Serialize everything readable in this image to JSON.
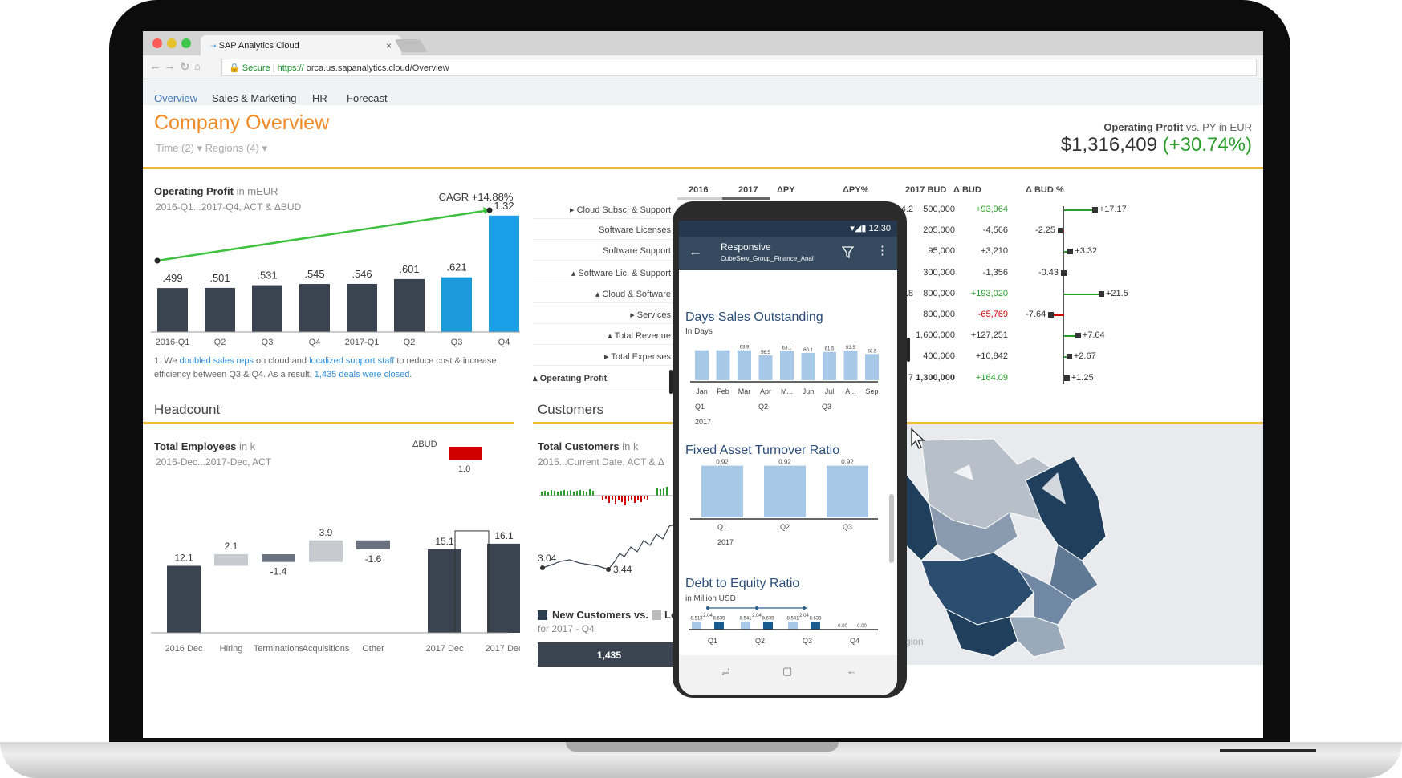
{
  "browser": {
    "tab_title": "SAP Analytics Cloud",
    "tab_close": "×",
    "url_secure": "Secure",
    "url_sep": "|",
    "url_scheme": "https://",
    "url_rest": " orca.us.sapanalytics.cloud/Overview"
  },
  "nav": {
    "tabs": [
      "Overview",
      "Sales & Marketing",
      "HR",
      "Forecast"
    ],
    "active": "Overview"
  },
  "page": {
    "title": "Company Overview",
    "filters": "Time (2) ▾   Regions (4) ▾"
  },
  "kpi": {
    "label_main": "Operating Profit",
    "label_rest": " vs. PY in EUR",
    "value": "$1,316,409",
    "delta": "(+30.74%)"
  },
  "op_profit": {
    "title": "Operating Profit",
    "unit": " in mEUR",
    "subtitle": "2016-Q1...2017-Q4, ACT & ΔBUD",
    "cagr": "CAGR +14.88%",
    "note_parts": [
      "1. We ",
      "doubled sales reps",
      " on cloud and ",
      "localized support staff",
      " to reduce cost & increase efficiency between Q3 & Q4. As a result, ",
      "1,435 deals were closed",
      "."
    ]
  },
  "headcount": {
    "section": "Headcount",
    "title": "Total Employees",
    "unit": " in k",
    "subtitle": "2016-Dec...2017-Dec, ACT",
    "dbud_label": "ΔBUD",
    "dbud_value": "1.0"
  },
  "customers": {
    "section": "Customers",
    "title": "Total Customers",
    "unit": " in k",
    "subtitle": "2015...Current Date, ACT & Δ",
    "legend": "New Customers vs. ",
    "legend_cut": "Lo",
    "legend_sub": "for 2017 - Q4",
    "bar_label": "1,435",
    "low_label": "3.04",
    "low2_label": "3.44"
  },
  "region_text": "gion",
  "table": {
    "headers": [
      "2016",
      "2017",
      "ΔPY",
      "ΔPY%",
      "2017 BUD",
      "Δ BUD",
      "Δ BUD %"
    ],
    "rows": [
      {
        "label": "▸ Cloud Subsc. & Support",
        "py_pct": "4.2",
        "bud": "500,000",
        "d_bud": "+93,964",
        "d_bud_cls": "pos",
        "bud_pct": "+17.17"
      },
      {
        "label": "Software Licenses",
        "py_pct": "",
        "bud": "205,000",
        "d_bud": "-4,566",
        "d_bud_cls": "",
        "bud_pct": "-2.25"
      },
      {
        "label": "Software Support",
        "py_pct": "",
        "bud": "95,000",
        "d_bud": "+3,210",
        "d_bud_cls": "",
        "bud_pct": "+3.32"
      },
      {
        "label": "▴ Software Lic. & Support",
        "py_pct": "",
        "bud": "300,000",
        "d_bud": "-1,356",
        "d_bud_cls": "",
        "bud_pct": "-0.43"
      },
      {
        "label": "▴ Cloud & Software",
        "py_pct": "+39.8",
        "bud": "800,000",
        "d_bud": "+193,020",
        "d_bud_cls": "pos",
        "bud_pct": "+21.5"
      },
      {
        "label": "▸ Services",
        "py_pct": "",
        "bud": "800,000",
        "d_bud": "-65,769",
        "d_bud_cls": "neg",
        "bud_pct": "-7.64"
      },
      {
        "label": "▴ Total Revenue",
        "py_pct": "",
        "bud": "1,600,000",
        "d_bud": "+127,251",
        "d_bud_cls": "",
        "bud_pct": "+7.64"
      },
      {
        "label": "▸ Total Expenses",
        "py_pct": "",
        "bud": "400,000",
        "d_bud": "+10,842",
        "d_bud_cls": "",
        "bud_pct": "+2.67"
      },
      {
        "label": "▴ Operating Profit",
        "py_pct": "7",
        "bud": "1,300,000",
        "d_bud": "+164.09",
        "d_bud_cls": "pos",
        "bud_pct": "+1.25"
      }
    ]
  },
  "phone": {
    "time": "12:30",
    "title": "Responsive",
    "subtitle": "CubeServ_Group_Finance_Anal",
    "dso_title": "Days Sales Outstanding",
    "dso_unit": "In Days",
    "fat_title": "Fixed Asset Turnover Ratio",
    "de_title": "Debt to Equity Ratio",
    "de_unit": "in Million USD",
    "year": "2017",
    "nav_recent": "≓",
    "nav_home": "▢",
    "nav_back": "←"
  },
  "chart_data": [
    {
      "type": "bar",
      "title": "Operating Profit",
      "categories": [
        "2016-Q1",
        "Q2",
        "Q3",
        "Q4",
        "2017-Q1",
        "Q2",
        "Q3",
        "Q4"
      ],
      "values": [
        0.499,
        0.501,
        0.531,
        0.545,
        0.546,
        0.601,
        0.621,
        1.32
      ],
      "labels": [
        ".499",
        ".501",
        ".531",
        ".545",
        ".546",
        ".601",
        ".621",
        "1.32"
      ],
      "highlight": [
        6,
        7
      ],
      "colors": {
        "base": "#3a4450",
        "q3": "#1a9ad8",
        "q4": "#1aa0e6",
        "trend": "#3ec13e"
      }
    },
    {
      "type": "bar",
      "title": "Total Employees",
      "categories": [
        "2016 Dec",
        "Hiring",
        "Terminations",
        "Acquisitions",
        "Other",
        "2017 Dec",
        "2017 Dec"
      ],
      "values": [
        12.1,
        2.1,
        -1.4,
        3.9,
        -1.6,
        15.1,
        16.1
      ],
      "labels": [
        "12.1",
        "2.1",
        "-1.4",
        "3.9",
        "-1.6",
        "15.1",
        "16.1"
      ]
    },
    {
      "type": "bar",
      "title": "Days Sales Outstanding",
      "categories": [
        "Jan",
        "Feb",
        "Mar",
        "Apr",
        "M...",
        "Jun",
        "Jul",
        "A...",
        "Sep"
      ],
      "quarters": [
        "Q1",
        "Q2",
        "Q3"
      ],
      "values": [
        63.9,
        63.9,
        63.9,
        56.5,
        63.1,
        60.1,
        61.5,
        63.5,
        58.5
      ],
      "labels": [
        "",
        "",
        "63.9",
        "56.5",
        "63.1",
        "60.1",
        "61.5",
        "63.5",
        "58.5"
      ]
    },
    {
      "type": "bar",
      "title": "Fixed Asset Turnover Ratio",
      "categories": [
        "Q1",
        "Q2",
        "Q3"
      ],
      "values": [
        0.92,
        0.92,
        0.92
      ],
      "labels": [
        "0.92",
        "0.92",
        "0.92"
      ]
    },
    {
      "type": "bar",
      "title": "Debt to Equity Ratio",
      "categories": [
        "Q1",
        "Q2",
        "Q3",
        "Q4"
      ],
      "values": [
        8.513,
        2.04,
        8.635,
        8.541,
        2.04,
        8.635,
        8.541,
        2.04,
        8.635,
        0.0,
        0.0
      ],
      "labels": [
        "8.513",
        "2.04",
        "8.635",
        "8.541",
        "2.04",
        "8.635",
        "8.541",
        "2.04",
        "8.635",
        "0.00",
        "0.00"
      ]
    }
  ],
  "colors": {
    "accent": "#f08a24",
    "gold": "#efb933",
    "blue": "#3f79b5",
    "dark_bar": "#3a4450",
    "map_dark": "#1f3f5c"
  }
}
